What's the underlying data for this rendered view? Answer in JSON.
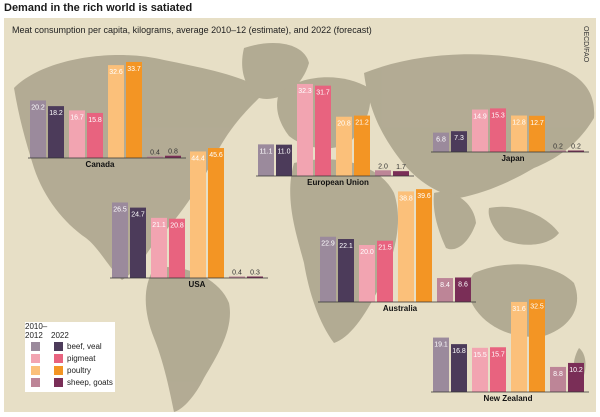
{
  "title": "Demand in the rich world is satiated",
  "subtitle": "Meat consumption per capita, kilograms, average 2010–12 (estimate), and 2022 (forecast)",
  "source": "OECD/FAO",
  "legend": {
    "col1": "2010–\n2012",
    "col2": "2022",
    "items": [
      {
        "label": "beef, veal",
        "c1": "#9b8a9c",
        "c2": "#4c3b5a"
      },
      {
        "label": "pigmeat",
        "c1": "#f2a4b1",
        "c2": "#e8637f"
      },
      {
        "label": "poultry",
        "c1": "#fbc07a",
        "c2": "#f39524"
      },
      {
        "label": "sheep, goats",
        "c1": "#bd8597",
        "c2": "#7a2e57"
      }
    ]
  },
  "chart_data": [
    {
      "type": "bar",
      "region": "Canada",
      "series": [
        {
          "name": "2010–2012",
          "values": [
            20.2,
            16.7,
            32.6,
            0.4
          ]
        },
        {
          "name": "2022",
          "values": [
            18.2,
            15.8,
            33.7,
            0.8
          ]
        }
      ],
      "categories": [
        "beef, veal",
        "pigmeat",
        "poultry",
        "sheep, goats"
      ]
    },
    {
      "type": "bar",
      "region": "USA",
      "series": [
        {
          "name": "2010–2012",
          "values": [
            26.5,
            21.1,
            44.4,
            0.4
          ]
        },
        {
          "name": "2022",
          "values": [
            24.7,
            20.8,
            45.6,
            0.3
          ]
        }
      ],
      "categories": [
        "beef, veal",
        "pigmeat",
        "poultry",
        "sheep, goats"
      ]
    },
    {
      "type": "bar",
      "region": "European Union",
      "series": [
        {
          "name": "2010–2012",
          "values": [
            11.1,
            32.3,
            20.8,
            2.0
          ]
        },
        {
          "name": "2022",
          "values": [
            11.0,
            31.7,
            21.2,
            1.7
          ]
        }
      ],
      "categories": [
        "beef, veal",
        "pigmeat",
        "poultry",
        "sheep, goats"
      ]
    },
    {
      "type": "bar",
      "region": "Japan",
      "series": [
        {
          "name": "2010–2012",
          "values": [
            6.8,
            14.9,
            12.8,
            0.2
          ]
        },
        {
          "name": "2022",
          "values": [
            7.3,
            15.3,
            12.7,
            0.2
          ]
        }
      ],
      "categories": [
        "beef, veal",
        "pigmeat",
        "poultry",
        "sheep, goats"
      ]
    },
    {
      "type": "bar",
      "region": "Australia",
      "series": [
        {
          "name": "2010–2012",
          "values": [
            22.9,
            20.0,
            38.8,
            8.4
          ]
        },
        {
          "name": "2022",
          "values": [
            22.1,
            21.5,
            39.6,
            8.6
          ]
        }
      ],
      "categories": [
        "beef, veal",
        "pigmeat",
        "poultry",
        "sheep, goats"
      ]
    },
    {
      "type": "bar",
      "region": "New Zealand",
      "series": [
        {
          "name": "2010–2012",
          "values": [
            19.1,
            15.5,
            31.6,
            8.8
          ]
        },
        {
          "name": "2022",
          "values": [
            16.8,
            15.7,
            32.5,
            10.2
          ]
        }
      ],
      "categories": [
        "beef, veal",
        "pigmeat",
        "poultry",
        "sheep, goats"
      ]
    }
  ]
}
